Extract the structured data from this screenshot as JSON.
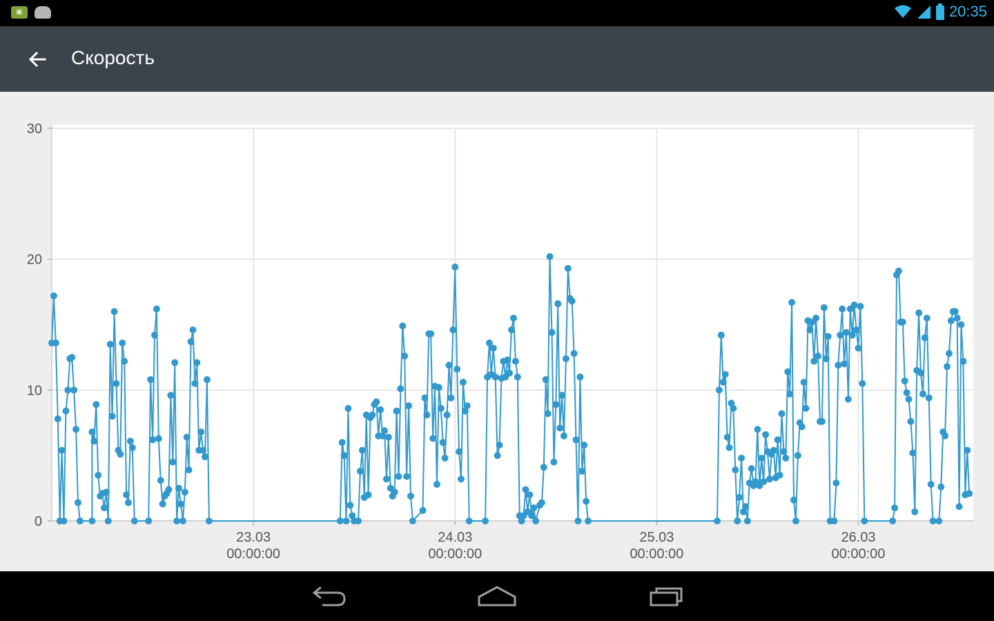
{
  "status_bar": {
    "time": "20:35",
    "icons": [
      "notification-icon",
      "android-icon",
      "wifi-icon",
      "signal-icon",
      "battery-icon"
    ]
  },
  "action_bar": {
    "title": "Скорость",
    "back_icon": "arrow-left-icon"
  },
  "colors": {
    "accent": "#3399cc",
    "action_bar": "#3b444b",
    "clock": "#33b5e5"
  },
  "nav_bar": {
    "icons": [
      "back-nav-icon",
      "home-nav-icon",
      "recents-nav-icon"
    ]
  },
  "chart_data": {
    "type": "line",
    "title": "",
    "xlabel": "",
    "ylabel": "",
    "ylim": [
      0,
      30
    ],
    "yticks": [
      "0",
      "10",
      "20",
      "30"
    ],
    "xticks": [
      {
        "date": "23.03",
        "time": "00:00:00",
        "x": 1.0
      },
      {
        "date": "24.03",
        "time": "00:00:00",
        "x": 2.0
      },
      {
        "date": "25.03",
        "time": "00:00:00",
        "x": 3.0
      },
      {
        "date": "26.03",
        "time": "00:00:00",
        "x": 4.0
      }
    ],
    "xlim": [
      0.0,
      4.57
    ],
    "grid": true,
    "markers": true,
    "series": [
      {
        "points": [
          [
            0.0,
            13.6
          ],
          [
            0.01,
            17.2
          ],
          [
            0.02,
            13.6
          ],
          [
            0.03,
            7.8
          ],
          [
            0.04,
            0
          ],
          [
            0.05,
            5.4
          ],
          [
            0.06,
            0
          ],
          [
            0.07,
            8.4
          ],
          [
            0.08,
            10
          ],
          [
            0.09,
            12.4
          ],
          [
            0.1,
            12.5
          ],
          [
            0.11,
            10
          ],
          [
            0.12,
            7
          ],
          [
            0.13,
            1.4
          ],
          [
            0.14,
            0
          ],
          [
            0.2,
            0
          ],
          [
            0.2,
            6.8
          ],
          [
            0.21,
            6.1
          ],
          [
            0.22,
            8.9
          ],
          [
            0.23,
            3.5
          ],
          [
            0.24,
            1.9
          ],
          [
            0.25,
            2.1
          ],
          [
            0.26,
            1
          ],
          [
            0.27,
            2.2
          ],
          [
            0.28,
            0
          ],
          [
            0.29,
            13.5
          ],
          [
            0.3,
            8
          ],
          [
            0.31,
            16
          ],
          [
            0.32,
            10.5
          ],
          [
            0.33,
            5.4
          ],
          [
            0.34,
            5.1
          ],
          [
            0.35,
            13.6
          ],
          [
            0.36,
            12.2
          ],
          [
            0.37,
            2
          ],
          [
            0.38,
            1.4
          ],
          [
            0.39,
            6.1
          ],
          [
            0.4,
            5.6
          ],
          [
            0.41,
            0
          ],
          [
            0.48,
            0
          ],
          [
            0.49,
            10.8
          ],
          [
            0.5,
            6.2
          ],
          [
            0.51,
            14.2
          ],
          [
            0.52,
            16.2
          ],
          [
            0.53,
            6.3
          ],
          [
            0.54,
            3.1
          ],
          [
            0.55,
            1.3
          ],
          [
            0.56,
            1.9
          ],
          [
            0.57,
            2.1
          ],
          [
            0.58,
            2.4
          ],
          [
            0.59,
            9.6
          ],
          [
            0.6,
            4.5
          ],
          [
            0.61,
            12.1
          ],
          [
            0.62,
            0
          ],
          [
            0.63,
            2.5
          ],
          [
            0.64,
            1.3
          ],
          [
            0.65,
            0
          ],
          [
            0.66,
            2.2
          ],
          [
            0.67,
            6.4
          ],
          [
            0.68,
            3.9
          ],
          [
            0.69,
            13.7
          ],
          [
            0.7,
            14.6
          ],
          [
            0.71,
            10.5
          ],
          [
            0.72,
            12.1
          ],
          [
            0.73,
            5.4
          ],
          [
            0.74,
            6.8
          ],
          [
            0.75,
            5.4
          ],
          [
            0.76,
            4.9
          ],
          [
            0.77,
            10.8
          ],
          [
            0.78,
            0
          ],
          [
            1.43,
            0
          ],
          [
            1.44,
            6
          ],
          [
            1.45,
            5
          ],
          [
            1.46,
            0
          ],
          [
            1.47,
            8.6
          ],
          [
            1.48,
            1.2
          ],
          [
            1.49,
            0.4
          ],
          [
            1.5,
            0
          ],
          [
            1.52,
            0
          ],
          [
            1.53,
            3.8
          ],
          [
            1.54,
            5.4
          ],
          [
            1.55,
            1.8
          ],
          [
            1.56,
            8.1
          ],
          [
            1.57,
            2
          ],
          [
            1.58,
            7.9
          ],
          [
            1.59,
            8.1
          ],
          [
            1.6,
            8.9
          ],
          [
            1.61,
            9.1
          ],
          [
            1.62,
            6.5
          ],
          [
            1.63,
            8.5
          ],
          [
            1.64,
            6.5
          ],
          [
            1.65,
            6.9
          ],
          [
            1.66,
            3.2
          ],
          [
            1.67,
            6.4
          ],
          [
            1.68,
            2.5
          ],
          [
            1.69,
            1.9
          ],
          [
            1.7,
            2.2
          ],
          [
            1.71,
            8.4
          ],
          [
            1.72,
            3.4
          ],
          [
            1.73,
            10.1
          ],
          [
            1.74,
            14.9
          ],
          [
            1.75,
            12.6
          ],
          [
            1.76,
            3.4
          ],
          [
            1.77,
            8.8
          ],
          [
            1.78,
            1.9
          ],
          [
            1.79,
            0
          ],
          [
            1.84,
            0.8
          ],
          [
            1.85,
            9.4
          ],
          [
            1.86,
            8.1
          ],
          [
            1.87,
            14.3
          ],
          [
            1.88,
            14.3
          ],
          [
            1.89,
            6.3
          ],
          [
            1.9,
            10.3
          ],
          [
            1.91,
            2.8
          ],
          [
            1.92,
            10.2
          ],
          [
            1.93,
            8.6
          ],
          [
            1.94,
            6
          ],
          [
            1.95,
            4.8
          ],
          [
            1.96,
            8.1
          ],
          [
            1.97,
            11.9
          ],
          [
            1.98,
            9.4
          ],
          [
            1.99,
            14.6
          ],
          [
            2.0,
            19.4
          ],
          [
            2.01,
            11.6
          ],
          [
            2.02,
            5.3
          ],
          [
            2.03,
            3.2
          ],
          [
            2.04,
            10.6
          ],
          [
            2.05,
            8.4
          ],
          [
            2.06,
            8.8
          ],
          [
            2.07,
            0
          ],
          [
            2.15,
            0
          ],
          [
            2.16,
            11
          ],
          [
            2.17,
            13.6
          ],
          [
            2.18,
            11.2
          ],
          [
            2.19,
            13.2
          ],
          [
            2.2,
            11
          ],
          [
            2.21,
            5
          ],
          [
            2.22,
            5.8
          ],
          [
            2.23,
            10.9
          ],
          [
            2.24,
            12.2
          ],
          [
            2.25,
            11
          ],
          [
            2.26,
            12.3
          ],
          [
            2.27,
            11.3
          ],
          [
            2.28,
            14.6
          ],
          [
            2.29,
            15.5
          ],
          [
            2.3,
            12.2
          ],
          [
            2.31,
            11
          ],
          [
            2.32,
            0.4
          ],
          [
            2.33,
            0
          ],
          [
            2.34,
            0.4
          ],
          [
            2.35,
            2.4
          ],
          [
            2.36,
            0.7
          ],
          [
            2.37,
            2
          ],
          [
            2.38,
            0.4
          ],
          [
            2.39,
            1
          ],
          [
            2.4,
            0
          ],
          [
            2.42,
            1.2
          ],
          [
            2.43,
            1.4
          ],
          [
            2.44,
            4.1
          ],
          [
            2.45,
            10.8
          ],
          [
            2.46,
            8.2
          ],
          [
            2.47,
            20.2
          ],
          [
            2.48,
            14.4
          ],
          [
            2.49,
            4.5
          ],
          [
            2.5,
            8.9
          ],
          [
            2.51,
            16.6
          ],
          [
            2.52,
            7.1
          ],
          [
            2.53,
            9.6
          ],
          [
            2.54,
            6.5
          ],
          [
            2.55,
            12.4
          ],
          [
            2.56,
            19.3
          ],
          [
            2.57,
            17
          ],
          [
            2.58,
            16.8
          ],
          [
            2.59,
            12.8
          ],
          [
            2.6,
            6.2
          ],
          [
            2.61,
            0
          ],
          [
            2.62,
            11
          ],
          [
            2.63,
            3.8
          ],
          [
            2.64,
            5.8
          ],
          [
            2.65,
            1.5
          ],
          [
            2.66,
            0
          ],
          [
            3.3,
            0
          ],
          [
            3.31,
            10
          ],
          [
            3.32,
            14.2
          ],
          [
            3.33,
            10.6
          ],
          [
            3.34,
            11.2
          ],
          [
            3.35,
            6.4
          ],
          [
            3.36,
            5.6
          ],
          [
            3.37,
            9
          ],
          [
            3.38,
            8.6
          ],
          [
            3.39,
            3.9
          ],
          [
            3.4,
            0
          ],
          [
            3.41,
            1.8
          ],
          [
            3.42,
            4.8
          ],
          [
            3.43,
            0.7
          ],
          [
            3.44,
            1.1
          ],
          [
            3.45,
            0
          ],
          [
            3.46,
            2.9
          ],
          [
            3.47,
            4
          ],
          [
            3.48,
            2.7
          ],
          [
            3.49,
            3
          ],
          [
            3.5,
            7
          ],
          [
            3.51,
            2.7
          ],
          [
            3.52,
            4.8
          ],
          [
            3.53,
            3
          ],
          [
            3.54,
            6.6
          ],
          [
            3.55,
            5.3
          ],
          [
            3.56,
            3.2
          ],
          [
            3.57,
            5.1
          ],
          [
            3.58,
            5.4
          ],
          [
            3.59,
            3.3
          ],
          [
            3.6,
            6.2
          ],
          [
            3.61,
            3.5
          ],
          [
            3.62,
            8.2
          ],
          [
            3.63,
            5.3
          ],
          [
            3.64,
            4.8
          ],
          [
            3.65,
            11.4
          ],
          [
            3.66,
            9.7
          ],
          [
            3.67,
            16.7
          ],
          [
            3.68,
            1.6
          ],
          [
            3.69,
            0
          ],
          [
            3.7,
            5
          ],
          [
            3.71,
            7.5
          ],
          [
            3.72,
            7.2
          ],
          [
            3.73,
            10.6
          ],
          [
            3.74,
            8.6
          ],
          [
            3.75,
            15.3
          ],
          [
            3.76,
            14.6
          ],
          [
            3.77,
            15.2
          ],
          [
            3.78,
            12.2
          ],
          [
            3.79,
            15.5
          ],
          [
            3.8,
            12.6
          ],
          [
            3.81,
            7.6
          ],
          [
            3.82,
            7.6
          ],
          [
            3.83,
            16.3
          ],
          [
            3.84,
            12.4
          ],
          [
            3.85,
            14.1
          ],
          [
            3.86,
            0
          ],
          [
            3.88,
            0
          ],
          [
            3.89,
            2.9
          ],
          [
            3.9,
            11.9
          ],
          [
            3.91,
            14.2
          ],
          [
            3.92,
            16.2
          ],
          [
            3.93,
            12
          ],
          [
            3.94,
            14.4
          ],
          [
            3.95,
            9.3
          ],
          [
            3.96,
            16.2
          ],
          [
            3.97,
            14.2
          ],
          [
            3.98,
            16.5
          ],
          [
            3.99,
            14.6
          ],
          [
            4.0,
            13.2
          ],
          [
            4.01,
            16.4
          ],
          [
            4.02,
            10.5
          ],
          [
            4.03,
            0
          ],
          [
            4.17,
            0
          ],
          [
            4.18,
            1
          ],
          [
            4.19,
            18.8
          ],
          [
            4.2,
            19.1
          ],
          [
            4.21,
            15.2
          ],
          [
            4.22,
            15.2
          ],
          [
            4.23,
            10.7
          ],
          [
            4.24,
            9.8
          ],
          [
            4.25,
            9.3
          ],
          [
            4.26,
            7.6
          ],
          [
            4.27,
            5.2
          ],
          [
            4.28,
            0.7
          ],
          [
            4.29,
            11.5
          ],
          [
            4.3,
            15.9
          ],
          [
            4.31,
            11.3
          ],
          [
            4.32,
            9.7
          ],
          [
            4.33,
            14
          ],
          [
            4.34,
            15.5
          ],
          [
            4.35,
            9.4
          ],
          [
            4.36,
            2.8
          ],
          [
            4.37,
            0
          ],
          [
            4.4,
            0
          ],
          [
            4.41,
            2.6
          ],
          [
            4.42,
            6.8
          ],
          [
            4.43,
            6.5
          ],
          [
            4.44,
            11.8
          ],
          [
            4.45,
            12.8
          ],
          [
            4.46,
            15.3
          ],
          [
            4.47,
            16
          ],
          [
            4.48,
            16
          ],
          [
            4.49,
            15.5
          ],
          [
            4.5,
            1.1
          ],
          [
            4.51,
            15
          ],
          [
            4.52,
            12.2
          ],
          [
            4.53,
            2
          ],
          [
            4.54,
            5.4
          ],
          [
            4.55,
            2.1
          ]
        ]
      }
    ]
  }
}
